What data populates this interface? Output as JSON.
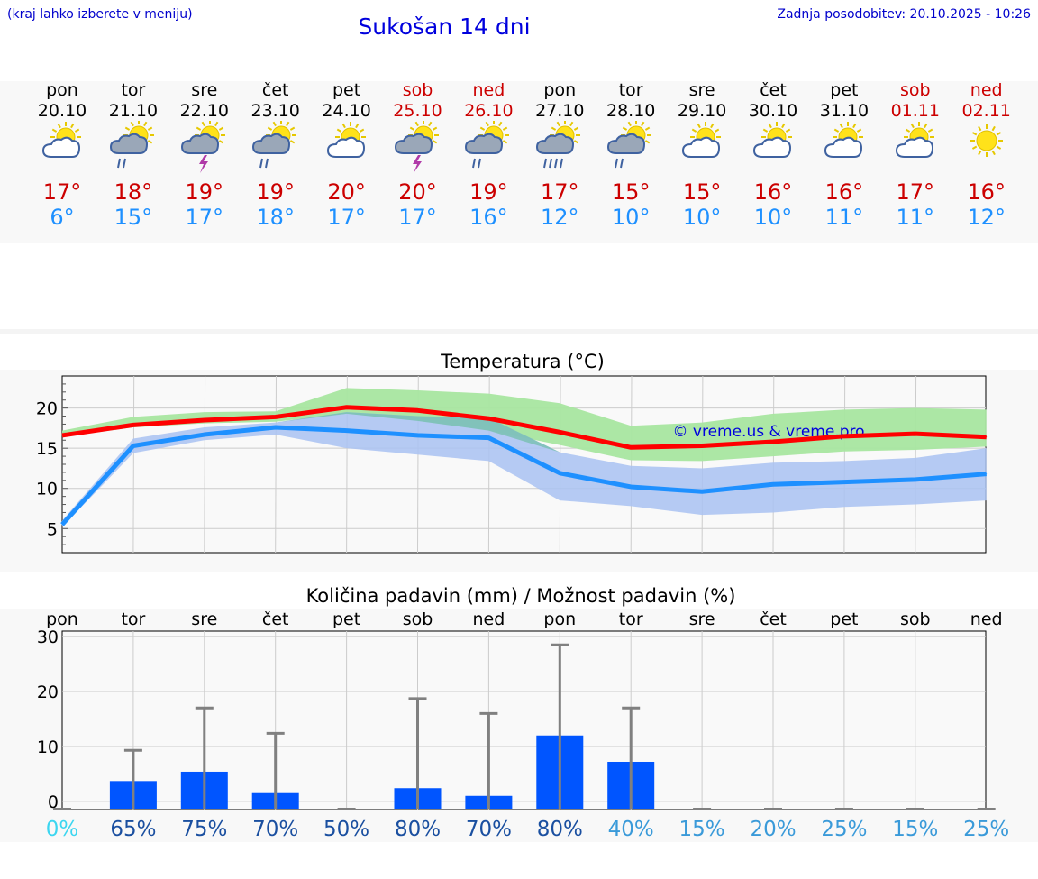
{
  "header": {
    "hint": "(kraj lahko izberete v meniju)",
    "title": "Sukošan 14 dni",
    "updated": "Zadnja posodobitev: 20.10.2025 - 10:26"
  },
  "days": [
    {
      "name": "pon",
      "date": "20.10",
      "weekend": false,
      "icon": "partly-cloudy-icon",
      "max": "17°",
      "min": "6°"
    },
    {
      "name": "tor",
      "date": "21.10",
      "weekend": false,
      "icon": "rain-icon",
      "max": "18°",
      "min": "15°"
    },
    {
      "name": "sre",
      "date": "22.10",
      "weekend": false,
      "icon": "thunderstorm-icon",
      "max": "19°",
      "min": "17°"
    },
    {
      "name": "čet",
      "date": "23.10",
      "weekend": false,
      "icon": "rain-icon",
      "max": "19°",
      "min": "18°"
    },
    {
      "name": "pet",
      "date": "24.10",
      "weekend": false,
      "icon": "partly-cloudy-icon",
      "max": "20°",
      "min": "17°"
    },
    {
      "name": "sob",
      "date": "25.10",
      "weekend": true,
      "icon": "thunderstorm-icon",
      "max": "20°",
      "min": "17°"
    },
    {
      "name": "ned",
      "date": "26.10",
      "weekend": true,
      "icon": "rain-icon",
      "max": "19°",
      "min": "16°"
    },
    {
      "name": "pon",
      "date": "27.10",
      "weekend": false,
      "icon": "heavy-rain-icon",
      "max": "17°",
      "min": "12°"
    },
    {
      "name": "tor",
      "date": "28.10",
      "weekend": false,
      "icon": "rain-icon",
      "max": "15°",
      "min": "10°"
    },
    {
      "name": "sre",
      "date": "29.10",
      "weekend": false,
      "icon": "partly-cloudy-icon",
      "max": "15°",
      "min": "10°"
    },
    {
      "name": "čet",
      "date": "30.10",
      "weekend": false,
      "icon": "partly-cloudy-icon",
      "max": "16°",
      "min": "10°"
    },
    {
      "name": "pet",
      "date": "31.10",
      "weekend": false,
      "icon": "partly-cloudy-icon",
      "max": "16°",
      "min": "11°"
    },
    {
      "name": "sob",
      "date": "01.11",
      "weekend": true,
      "icon": "partly-cloudy-icon",
      "max": "17°",
      "min": "11°"
    },
    {
      "name": "ned",
      "date": "02.11",
      "weekend": true,
      "icon": "sun-icon",
      "max": "16°",
      "min": "12°"
    }
  ],
  "chart_data": [
    {
      "type": "line",
      "title": "Temperatura (°C)",
      "watermark": "© vreme.us & vreme.pro",
      "ylim": [
        2,
        24
      ],
      "yticks": [
        "5",
        "10",
        "15",
        "20"
      ],
      "grid": true,
      "series": [
        {
          "name": "max",
          "color": "#ff0000",
          "values": [
            16.6,
            17.9,
            18.5,
            18.9,
            20.1,
            19.7,
            18.7,
            17.0,
            15.1,
            15.3,
            15.8,
            16.5,
            16.8,
            16.4
          ]
        },
        {
          "name": "min",
          "color": "#1e90ff",
          "values": [
            5.5,
            15.3,
            16.7,
            17.6,
            17.2,
            16.6,
            16.3,
            11.9,
            10.2,
            9.6,
            10.5,
            10.8,
            11.1,
            11.8
          ]
        }
      ],
      "bands": [
        {
          "series": "max",
          "color": "#a8e6a0",
          "low": [
            16.4,
            17.6,
            18.1,
            18.3,
            19.3,
            18.4,
            17.2,
            15.4,
            13.5,
            13.4,
            14.0,
            14.6,
            14.8,
            15.2
          ],
          "high": [
            17.2,
            18.9,
            19.5,
            19.6,
            22.5,
            22.2,
            21.8,
            20.6,
            17.8,
            18.2,
            19.3,
            19.8,
            20.0,
            19.8
          ]
        },
        {
          "series": "min",
          "color": "#a9c2f2",
          "low": [
            5.2,
            14.4,
            16.0,
            16.7,
            15.0,
            14.2,
            13.4,
            8.5,
            7.8,
            6.7,
            7.0,
            7.7,
            8.0,
            8.5
          ],
          "high": [
            6.0,
            16.2,
            17.6,
            18.2,
            19.5,
            19.0,
            18.8,
            14.5,
            12.8,
            12.5,
            13.2,
            13.4,
            13.8,
            15.0
          ]
        }
      ]
    },
    {
      "type": "bar",
      "title": "Količina padavin (mm) / Možnost padavin (%)",
      "categories": [
        "pon",
        "tor",
        "sre",
        "čet",
        "pet",
        "sob",
        "ned",
        "pon",
        "tor",
        "sre",
        "čet",
        "pet",
        "sob",
        "ned"
      ],
      "ylim": [
        -1.5,
        31
      ],
      "yticks": [
        "0",
        "10",
        "20",
        "30"
      ],
      "values": [
        0,
        3.7,
        5.4,
        1.5,
        0,
        2.4,
        1.0,
        12.0,
        7.2,
        0,
        0,
        0,
        0,
        0
      ],
      "error_high": [
        0,
        9.3,
        17.0,
        12.4,
        0,
        18.7,
        16.0,
        28.5,
        17.0,
        0,
        0,
        0,
        0,
        0
      ],
      "chance": [
        "0%",
        "65%",
        "75%",
        "70%",
        "50%",
        "80%",
        "70%",
        "80%",
        "40%",
        "15%",
        "20%",
        "25%",
        "15%",
        "25%"
      ],
      "bar_color": "#0055ff",
      "whisker_color": "#808080"
    }
  ]
}
